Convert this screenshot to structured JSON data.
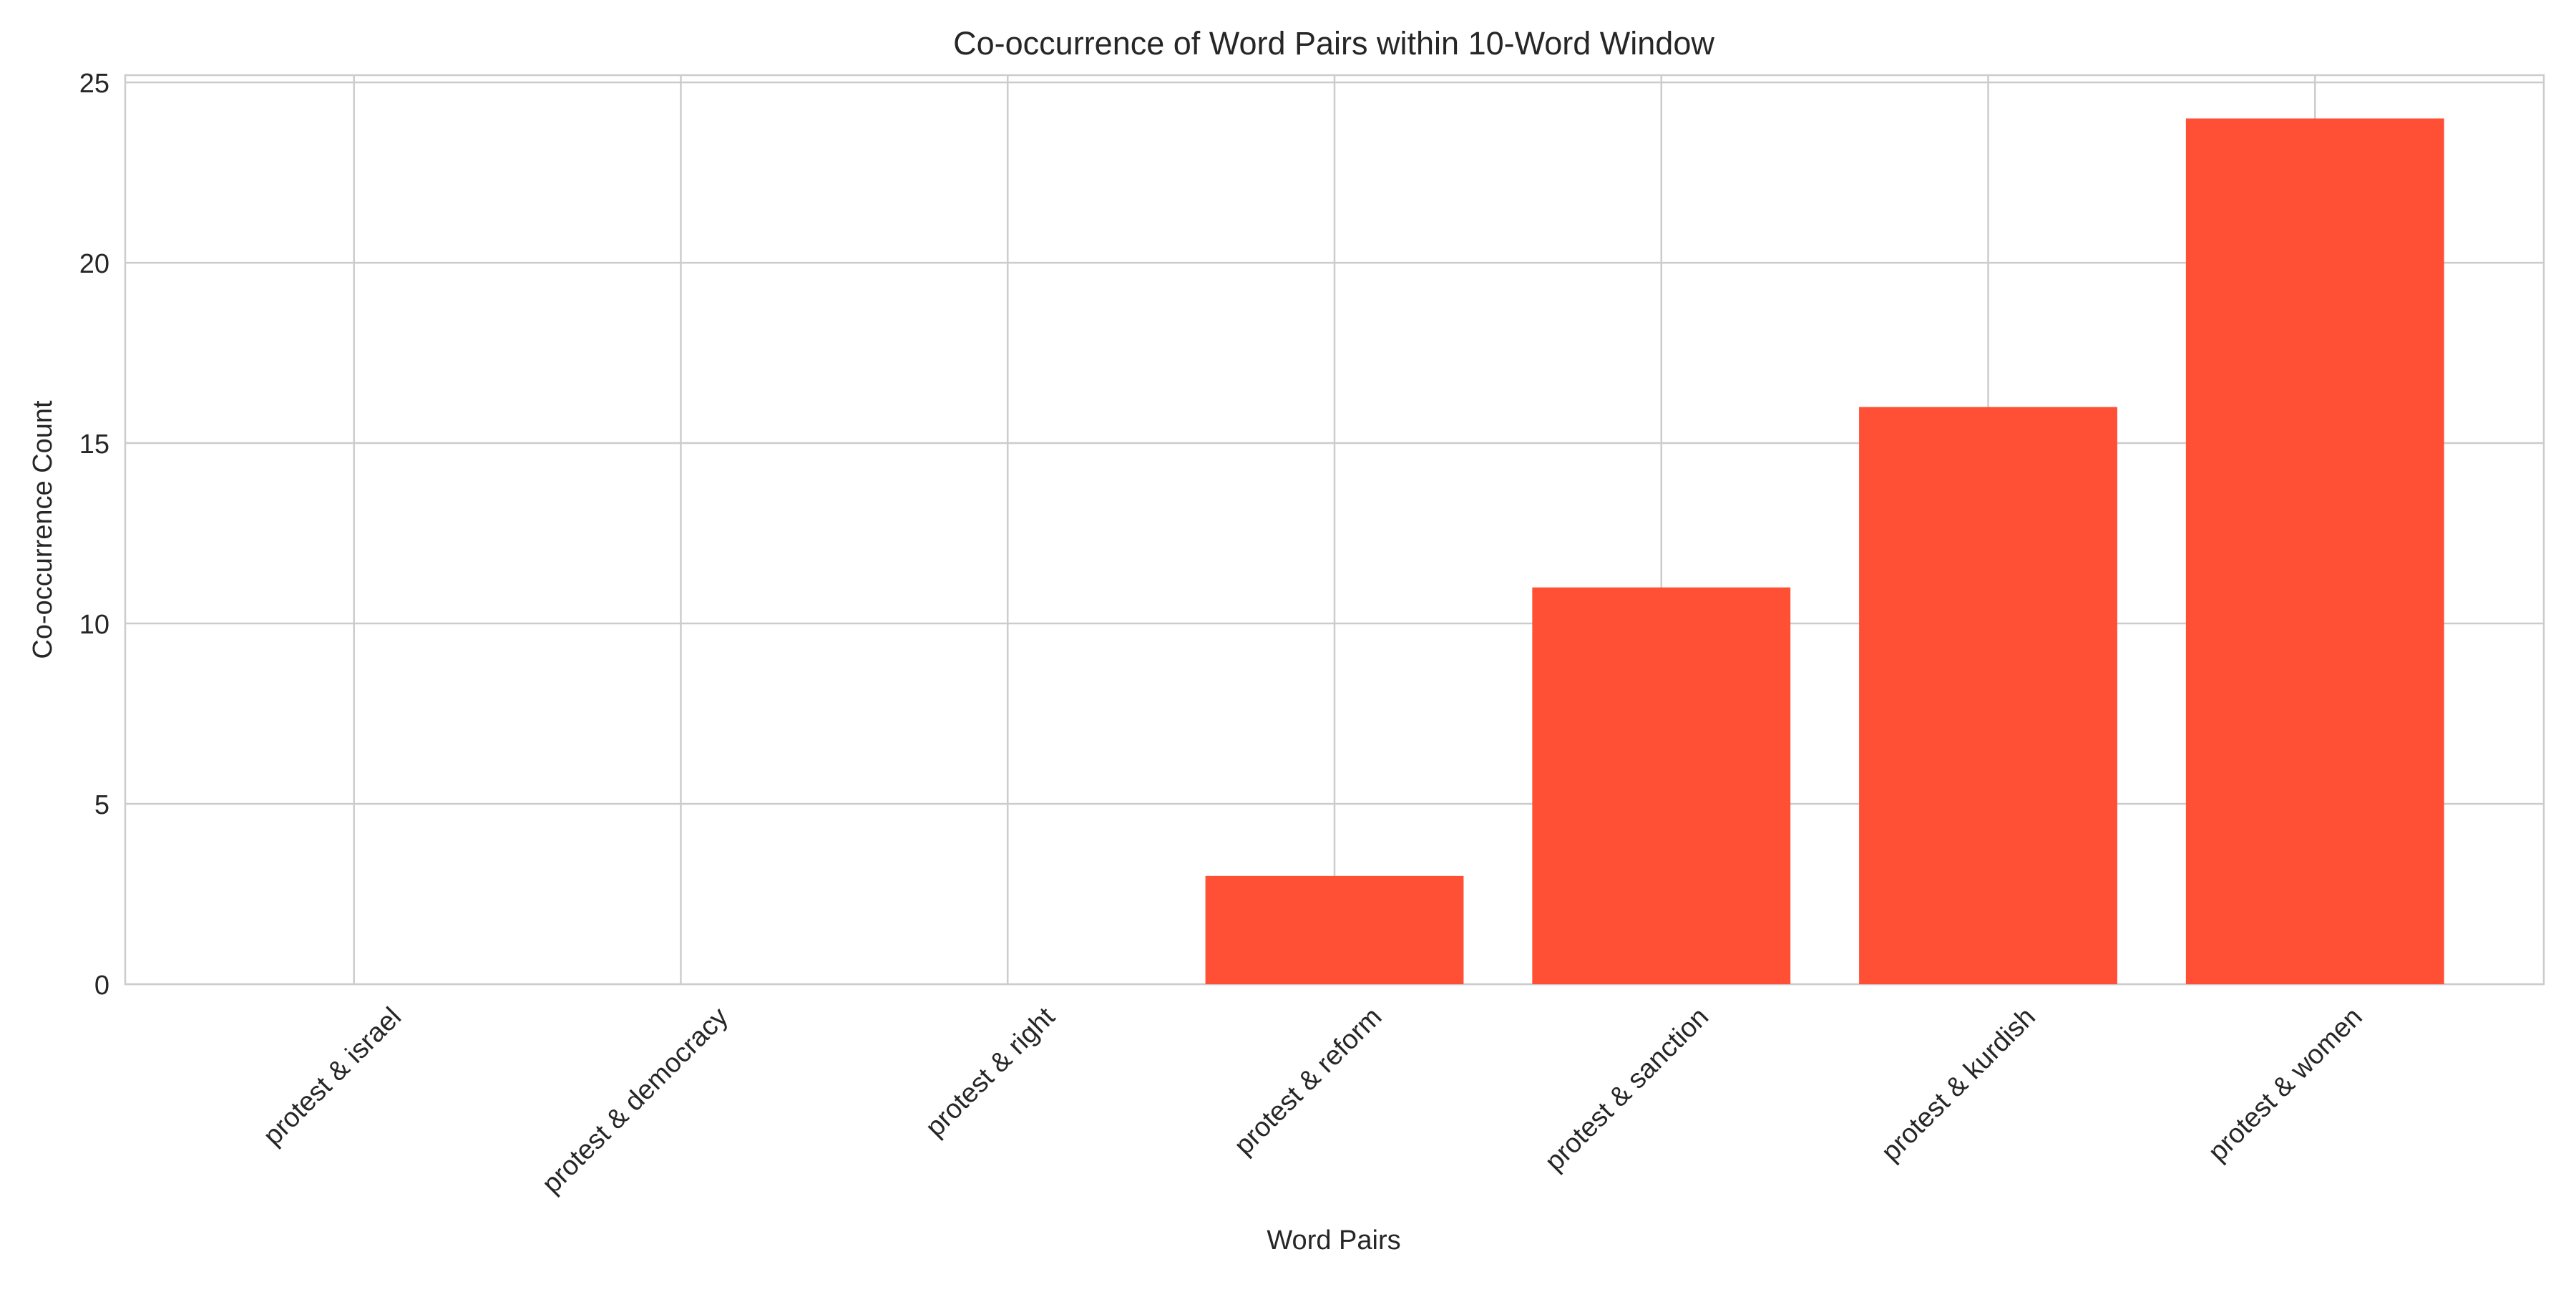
{
  "chart_data": {
    "type": "bar",
    "title": "Co-occurrence of Word Pairs within 10-Word Window",
    "xlabel": "Word Pairs",
    "ylabel": "Co-occurrence Count",
    "categories": [
      "protest & israel",
      "protest & democracy",
      "protest & right",
      "protest & reform",
      "protest & sanction",
      "protest & kurdish",
      "protest & women"
    ],
    "values": [
      0,
      0,
      0,
      3,
      11,
      16,
      24
    ],
    "ylim": [
      0,
      25.2
    ],
    "yticks": [
      0,
      5,
      10,
      15,
      20,
      25
    ],
    "grid": true,
    "bar_color": "#ff5035",
    "grid_color": "#cccccc"
  }
}
